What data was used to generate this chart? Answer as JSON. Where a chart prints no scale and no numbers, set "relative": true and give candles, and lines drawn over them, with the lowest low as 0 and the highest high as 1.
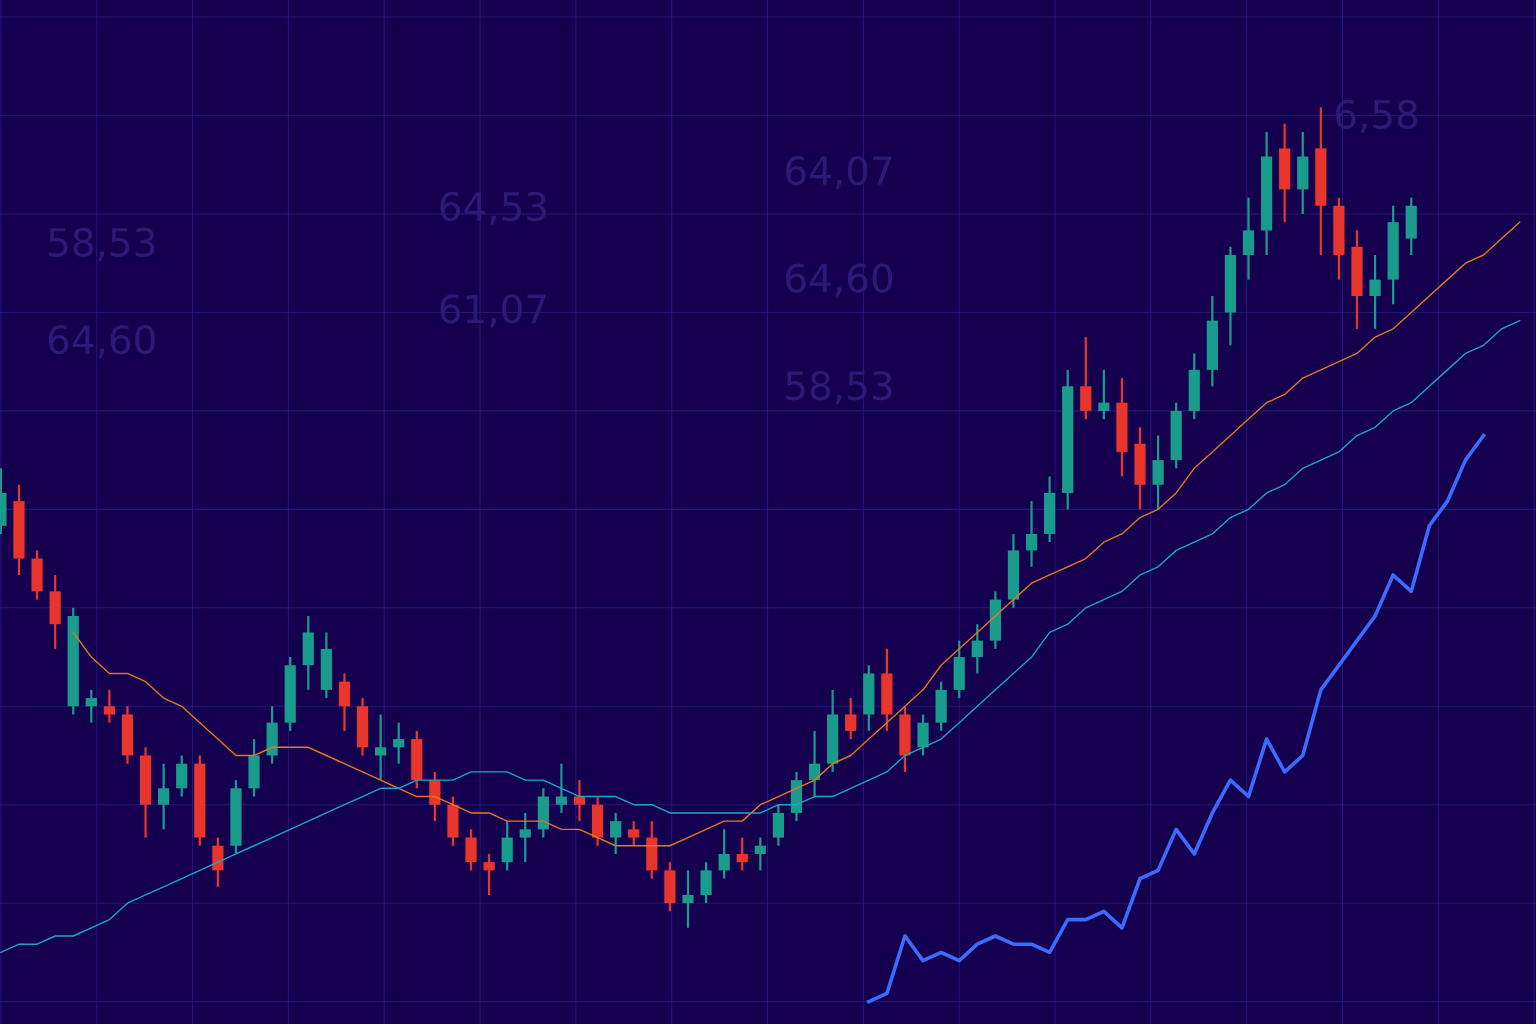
{
  "chart_data": {
    "type": "candlestick",
    "relative": true,
    "grid": true,
    "tick_labels": false,
    "annotations": [
      "6,58",
      "64,07",
      "64,53",
      "58,53",
      "64,60",
      "61,07",
      "64,60",
      "58,53"
    ],
    "categories": [
      null,
      null,
      null,
      null,
      null,
      null,
      null,
      null,
      null,
      null,
      null,
      null,
      null,
      null,
      null,
      null,
      null,
      null,
      null,
      null,
      null,
      null,
      null,
      null,
      null,
      null,
      null,
      null,
      null,
      null,
      null,
      null,
      null,
      null,
      null,
      null,
      null,
      null,
      null,
      null,
      null,
      null,
      null,
      null,
      null,
      null,
      null,
      null,
      null,
      null,
      null,
      null,
      null,
      null,
      null,
      null,
      null,
      null,
      null,
      null,
      null,
      null,
      null,
      null,
      null,
      null,
      null,
      null,
      null,
      null,
      null,
      null,
      null,
      null,
      null,
      null,
      null,
      null,
      null,
      null,
      null,
      null,
      null,
      null,
      null
    ],
    "ohlc": [
      [
        0.49,
        0.56,
        0.48,
        0.53
      ],
      [
        0.52,
        0.54,
        0.43,
        0.45
      ],
      [
        0.45,
        0.46,
        0.4,
        0.41
      ],
      [
        0.41,
        0.43,
        0.34,
        0.37
      ],
      [
        0.27,
        0.39,
        0.26,
        0.38
      ],
      [
        0.27,
        0.29,
        0.25,
        0.28
      ],
      [
        0.27,
        0.29,
        0.25,
        0.26
      ],
      [
        0.26,
        0.27,
        0.2,
        0.21
      ],
      [
        0.21,
        0.22,
        0.11,
        0.15
      ],
      [
        0.15,
        0.2,
        0.12,
        0.17
      ],
      [
        0.17,
        0.21,
        0.16,
        0.2
      ],
      [
        0.2,
        0.21,
        0.1,
        0.11
      ],
      [
        0.1,
        0.11,
        0.05,
        0.07
      ],
      [
        0.1,
        0.18,
        0.09,
        0.17
      ],
      [
        0.17,
        0.23,
        0.16,
        0.21
      ],
      [
        0.21,
        0.27,
        0.2,
        0.25
      ],
      [
        0.25,
        0.33,
        0.24,
        0.32
      ],
      [
        0.32,
        0.38,
        0.29,
        0.36
      ],
      [
        0.29,
        0.36,
        0.28,
        0.34
      ],
      [
        0.3,
        0.31,
        0.24,
        0.27
      ],
      [
        0.27,
        0.28,
        0.21,
        0.22
      ],
      [
        0.21,
        0.26,
        0.18,
        0.22
      ],
      [
        0.22,
        0.25,
        0.2,
        0.23
      ],
      [
        0.23,
        0.24,
        0.17,
        0.18
      ],
      [
        0.18,
        0.19,
        0.13,
        0.15
      ],
      [
        0.15,
        0.16,
        0.1,
        0.11
      ],
      [
        0.11,
        0.12,
        0.07,
        0.08
      ],
      [
        0.08,
        0.09,
        0.04,
        0.07
      ],
      [
        0.08,
        0.13,
        0.07,
        0.11
      ],
      [
        0.11,
        0.14,
        0.08,
        0.12
      ],
      [
        0.12,
        0.17,
        0.11,
        0.16
      ],
      [
        0.15,
        0.2,
        0.14,
        0.16
      ],
      [
        0.16,
        0.18,
        0.13,
        0.15
      ],
      [
        0.15,
        0.16,
        0.1,
        0.11
      ],
      [
        0.11,
        0.14,
        0.09,
        0.13
      ],
      [
        0.12,
        0.13,
        0.1,
        0.11
      ],
      [
        0.11,
        0.13,
        0.06,
        0.07
      ],
      [
        0.07,
        0.08,
        0.02,
        0.03
      ],
      [
        0.03,
        0.07,
        0.0,
        0.04
      ],
      [
        0.04,
        0.08,
        0.03,
        0.07
      ],
      [
        0.07,
        0.12,
        0.06,
        0.09
      ],
      [
        0.09,
        0.11,
        0.07,
        0.08
      ],
      [
        0.09,
        0.11,
        0.07,
        0.1
      ],
      [
        0.11,
        0.15,
        0.1,
        0.14
      ],
      [
        0.14,
        0.19,
        0.13,
        0.18
      ],
      [
        0.18,
        0.24,
        0.16,
        0.2
      ],
      [
        0.2,
        0.29,
        0.19,
        0.26
      ],
      [
        0.26,
        0.28,
        0.23,
        0.24
      ],
      [
        0.26,
        0.32,
        0.24,
        0.31
      ],
      [
        0.31,
        0.34,
        0.24,
        0.26
      ],
      [
        0.26,
        0.27,
        0.19,
        0.21
      ],
      [
        0.22,
        0.26,
        0.21,
        0.25
      ],
      [
        0.25,
        0.3,
        0.24,
        0.29
      ],
      [
        0.29,
        0.35,
        0.28,
        0.33
      ],
      [
        0.33,
        0.37,
        0.31,
        0.35
      ],
      [
        0.35,
        0.41,
        0.34,
        0.4
      ],
      [
        0.4,
        0.48,
        0.39,
        0.46
      ],
      [
        0.46,
        0.52,
        0.44,
        0.48
      ],
      [
        0.48,
        0.55,
        0.47,
        0.53
      ],
      [
        0.53,
        0.68,
        0.51,
        0.66
      ],
      [
        0.66,
        0.72,
        0.62,
        0.63
      ],
      [
        0.63,
        0.68,
        0.62,
        0.64
      ],
      [
        0.64,
        0.67,
        0.55,
        0.58
      ],
      [
        0.59,
        0.61,
        0.51,
        0.54
      ],
      [
        0.54,
        0.6,
        0.51,
        0.57
      ],
      [
        0.57,
        0.64,
        0.56,
        0.63
      ],
      [
        0.63,
        0.7,
        0.62,
        0.68
      ],
      [
        0.68,
        0.77,
        0.66,
        0.74
      ],
      [
        0.75,
        0.83,
        0.71,
        0.82
      ],
      [
        0.82,
        0.89,
        0.79,
        0.85
      ],
      [
        0.85,
        0.97,
        0.82,
        0.94
      ],
      [
        0.95,
        0.98,
        0.86,
        0.9
      ],
      [
        0.9,
        0.97,
        0.87,
        0.94
      ],
      [
        0.95,
        1.0,
        0.82,
        0.88
      ],
      [
        0.88,
        0.89,
        0.79,
        0.82
      ],
      [
        0.83,
        0.85,
        0.73,
        0.77
      ],
      [
        0.77,
        0.82,
        0.73,
        0.79
      ],
      [
        0.79,
        0.88,
        0.76,
        0.86
      ],
      [
        0.84,
        0.89,
        0.82,
        0.88
      ],
      null,
      null,
      null,
      null,
      null,
      null
    ],
    "colors": [
      "#1a9c8c",
      "#e8362c",
      "#e8362c",
      "#e8362c",
      "#1a9c8c",
      "#1a9c8c",
      "#e8362c",
      "#e8362c",
      "#e8362c",
      "#1a9c8c",
      "#1a9c8c",
      "#e8362c",
      "#e8362c",
      "#1a9c8c",
      "#1a9c8c",
      "#1a9c8c",
      "#1a9c8c",
      "#1a9c8c",
      "#1a9c8c",
      "#e8362c",
      "#e8362c",
      "#1a9c8c",
      "#1a9c8c",
      "#e8362c",
      "#e8362c",
      "#e8362c",
      "#e8362c",
      "#e8362c",
      "#1a9c8c",
      "#1a9c8c",
      "#1a9c8c",
      "#1a9c8c",
      "#e8362c",
      "#e8362c",
      "#1a9c8c",
      "#e8362c",
      "#e8362c",
      "#e8362c",
      "#1a9c8c",
      "#1a9c8c",
      "#1a9c8c",
      "#e8362c",
      "#1a9c8c",
      "#1a9c8c",
      "#1a9c8c",
      "#1a9c8c",
      "#1a9c8c",
      "#e8362c",
      "#1a9c8c",
      "#e8362c",
      "#e8362c",
      "#1a9c8c",
      "#1a9c8c",
      "#1a9c8c",
      "#1a9c8c",
      "#1a9c8c",
      "#1a9c8c",
      "#1a9c8c",
      "#1a9c8c",
      "#1a9c8c",
      "#e8362c",
      "#1a9c8c",
      "#e8362c",
      "#e8362c",
      "#1a9c8c",
      "#1a9c8c",
      "#1a9c8c",
      "#1a9c8c",
      "#1a9c8c",
      "#1a9c8c",
      "#1a9c8c",
      "#e8362c",
      "#1a9c8c",
      "#e8362c",
      "#e8362c",
      "#e8362c",
      "#1a9c8c",
      "#1a9c8c",
      "#1a9c8c",
      null,
      null,
      null,
      null,
      null,
      null
    ],
    "series": [
      {
        "type": "line",
        "color": "#e8761e",
        "values": [
          null,
          null,
          null,
          null,
          0.36,
          0.33,
          0.31,
          0.31,
          0.3,
          0.28,
          0.27,
          0.25,
          0.23,
          0.21,
          0.21,
          0.22,
          0.22,
          0.22,
          0.21,
          0.2,
          0.19,
          0.18,
          0.17,
          0.16,
          0.16,
          0.15,
          0.14,
          0.14,
          0.13,
          0.13,
          0.13,
          0.12,
          0.12,
          0.11,
          0.1,
          0.1,
          0.1,
          0.1,
          0.11,
          0.12,
          0.13,
          0.13,
          0.15,
          0.16,
          0.17,
          0.18,
          0.2,
          0.21,
          0.23,
          0.25,
          0.27,
          0.29,
          0.32,
          0.34,
          0.36,
          0.38,
          0.4,
          0.42,
          0.43,
          0.44,
          0.45,
          0.47,
          0.48,
          0.5,
          0.51,
          0.53,
          0.56,
          0.58,
          0.6,
          0.62,
          0.64,
          0.65,
          0.67,
          0.68,
          0.69,
          0.7,
          0.72,
          0.73,
          0.75,
          0.77,
          0.79,
          0.81,
          0.82,
          0.84,
          0.86
        ]
      },
      {
        "type": "line",
        "color": "#1fa5c9",
        "values": [
          -0.03,
          -0.02,
          -0.02,
          -0.01,
          -0.01,
          0.0,
          0.01,
          0.03,
          0.04,
          0.05,
          0.06,
          0.07,
          0.08,
          0.09,
          0.1,
          0.11,
          0.12,
          0.13,
          0.14,
          0.15,
          0.16,
          0.17,
          0.17,
          0.18,
          0.18,
          0.18,
          0.19,
          0.19,
          0.19,
          0.18,
          0.18,
          0.17,
          0.16,
          0.16,
          0.16,
          0.15,
          0.15,
          0.14,
          0.14,
          0.14,
          0.14,
          0.14,
          0.14,
          0.15,
          0.15,
          0.16,
          0.16,
          0.17,
          0.18,
          0.19,
          0.21,
          0.22,
          0.23,
          0.25,
          0.27,
          0.29,
          0.31,
          0.33,
          0.36,
          0.37,
          0.39,
          0.4,
          0.41,
          0.43,
          0.44,
          0.46,
          0.47,
          0.48,
          0.5,
          0.51,
          0.53,
          0.54,
          0.56,
          0.57,
          0.58,
          0.6,
          0.61,
          0.63,
          0.64,
          0.66,
          0.68,
          0.7,
          0.71,
          0.73,
          0.74
        ]
      },
      {
        "type": "line",
        "color": "#3b6cff",
        "values": [
          null,
          null,
          null,
          null,
          null,
          null,
          null,
          null,
          null,
          null,
          null,
          null,
          null,
          null,
          null,
          null,
          null,
          null,
          null,
          null,
          null,
          null,
          null,
          null,
          null,
          null,
          null,
          null,
          null,
          null,
          null,
          null,
          null,
          null,
          null,
          null,
          null,
          null,
          null,
          null,
          null,
          null,
          null,
          null,
          null,
          null,
          null,
          null,
          -0.09,
          -0.08,
          -0.01,
          -0.04,
          -0.03,
          -0.04,
          -0.02,
          -0.01,
          -0.02,
          -0.02,
          -0.03,
          0.01,
          0.01,
          0.02,
          0.0,
          0.06,
          0.07,
          0.12,
          0.09,
          0.14,
          0.18,
          0.16,
          0.23,
          0.19,
          0.21,
          0.29,
          0.32,
          0.35,
          0.38,
          0.43,
          0.41,
          0.49,
          0.52,
          0.57,
          0.6,
          null,
          null
        ]
      }
    ]
  }
}
